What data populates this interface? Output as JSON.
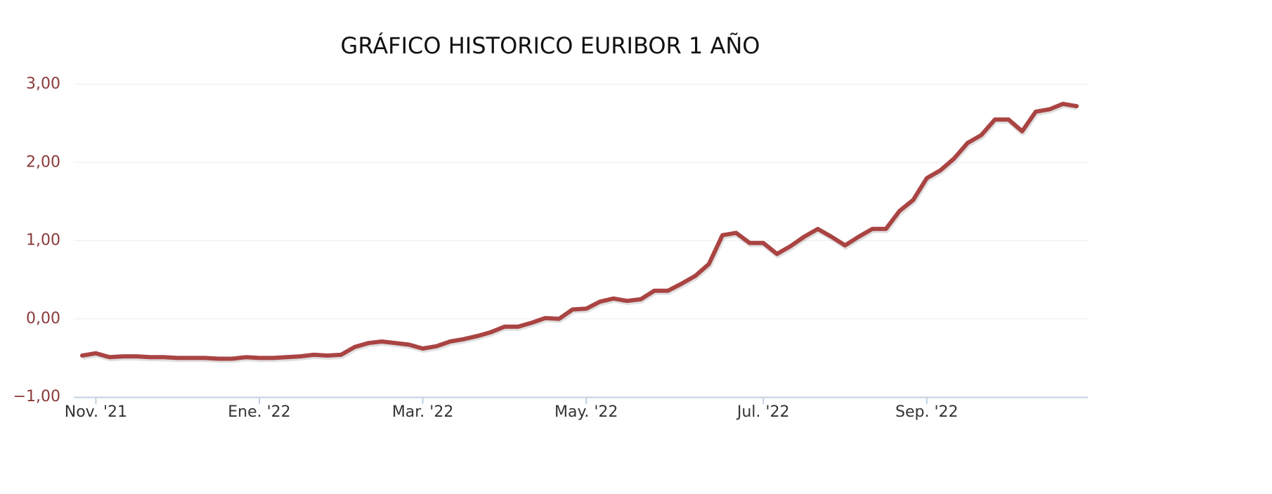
{
  "chart_data": {
    "type": "line",
    "title": "GRÁFICO HISTORICO EURIBOR 1 AÑO",
    "categories": [
      null,
      "Nov. '21",
      null,
      null,
      null,
      null,
      null,
      null,
      null,
      null,
      null,
      null,
      null,
      "Ene. '22",
      null,
      null,
      null,
      null,
      null,
      null,
      null,
      null,
      null,
      null,
      null,
      "Mar. '22",
      null,
      null,
      null,
      null,
      null,
      null,
      null,
      null,
      null,
      null,
      null,
      "May. '22",
      null,
      null,
      null,
      null,
      null,
      null,
      null,
      null,
      null,
      null,
      null,
      null,
      "Jul. '22",
      null,
      null,
      null,
      null,
      null,
      null,
      null,
      null,
      null,
      null,
      null,
      "Sep. '22",
      null,
      null,
      null,
      null,
      null,
      null,
      null,
      null,
      null,
      null,
      null
    ],
    "values": [
      -0.47,
      -0.44,
      -0.49,
      -0.48,
      -0.48,
      -0.49,
      -0.49,
      -0.5,
      -0.5,
      -0.5,
      -0.51,
      -0.51,
      -0.49,
      -0.5,
      -0.5,
      -0.49,
      -0.48,
      -0.46,
      -0.47,
      -0.46,
      -0.36,
      -0.31,
      -0.29,
      -0.31,
      -0.33,
      -0.38,
      -0.35,
      -0.29,
      -0.26,
      -0.22,
      -0.17,
      -0.1,
      -0.1,
      -0.05,
      0.01,
      0.0,
      0.12,
      0.13,
      0.22,
      0.26,
      0.23,
      0.25,
      0.36,
      0.36,
      0.45,
      0.55,
      0.7,
      1.07,
      1.1,
      0.97,
      0.97,
      0.83,
      0.93,
      1.05,
      1.15,
      1.05,
      0.94,
      1.05,
      1.15,
      1.15,
      1.38,
      1.52,
      1.8,
      1.9,
      2.05,
      2.25,
      2.35,
      2.55,
      2.55,
      2.4,
      2.65,
      2.68,
      2.75,
      2.72
    ],
    "color": "#a94442",
    "ylim": [
      -1,
      3
    ],
    "yticks": [
      {
        "value": -1,
        "label": "−1,00"
      },
      {
        "value": 0,
        "label": "0,00"
      },
      {
        "value": 1,
        "label": "1,00"
      },
      {
        "value": 2,
        "label": "2,00"
      },
      {
        "value": 3,
        "label": "3,00"
      }
    ],
    "grid": true
  }
}
